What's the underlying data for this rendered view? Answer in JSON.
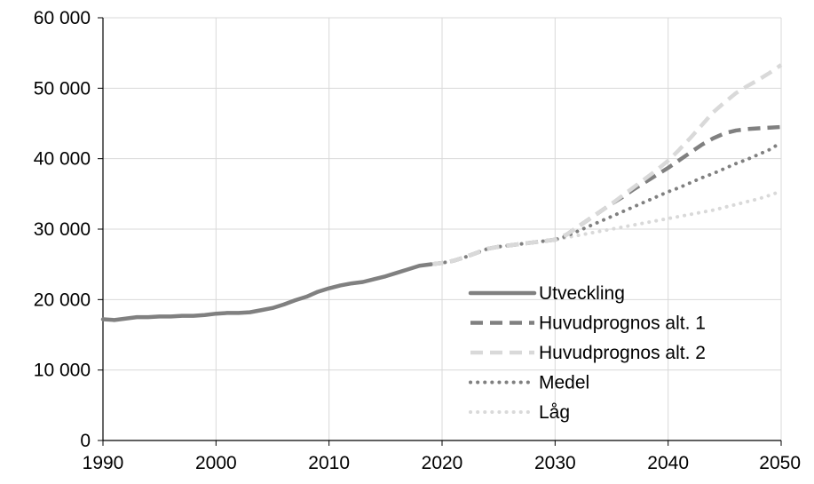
{
  "chart_data": {
    "type": "line",
    "title": "",
    "xlabel": "",
    "ylabel": "",
    "xlim": [
      1990,
      2050
    ],
    "ylim": [
      0,
      60000
    ],
    "grid": true,
    "legend_position": "bottom-right",
    "x_ticks": [
      1990,
      2000,
      2010,
      2020,
      2030,
      2040,
      2050
    ],
    "x_tick_labels": [
      "1990",
      "2000",
      "2010",
      "2020",
      "2030",
      "2040",
      "2050"
    ],
    "y_ticks": [
      0,
      10000,
      20000,
      30000,
      40000,
      50000,
      60000
    ],
    "y_tick_labels": [
      "0",
      "10 000",
      "20 000",
      "30 000",
      "40 000",
      "50 000",
      "60 000"
    ],
    "series": [
      {
        "name": "Utveckling",
        "color": "#808080",
        "style": "solid",
        "points": [
          [
            1990,
            17200
          ],
          [
            1991,
            17100
          ],
          [
            1992,
            17300
          ],
          [
            1993,
            17500
          ],
          [
            1994,
            17500
          ],
          [
            1995,
            17600
          ],
          [
            1996,
            17600
          ],
          [
            1997,
            17700
          ],
          [
            1998,
            17700
          ],
          [
            1999,
            17800
          ],
          [
            2000,
            18000
          ],
          [
            2001,
            18100
          ],
          [
            2002,
            18100
          ],
          [
            2003,
            18200
          ],
          [
            2004,
            18500
          ],
          [
            2005,
            18800
          ],
          [
            2006,
            19300
          ],
          [
            2007,
            19900
          ],
          [
            2008,
            20400
          ],
          [
            2009,
            21100
          ],
          [
            2010,
            21600
          ],
          [
            2011,
            22000
          ],
          [
            2012,
            22300
          ],
          [
            2013,
            22500
          ],
          [
            2014,
            22900
          ],
          [
            2015,
            23300
          ],
          [
            2016,
            23800
          ],
          [
            2017,
            24300
          ],
          [
            2018,
            24800
          ],
          [
            2019,
            25000
          ]
        ]
      },
      {
        "name": "Huvudprognos alt. 1",
        "color": "#808080",
        "style": "dashed",
        "points": [
          [
            2019,
            25000
          ],
          [
            2020,
            25200
          ],
          [
            2021,
            25500
          ],
          [
            2022,
            26000
          ],
          [
            2023,
            26600
          ],
          [
            2024,
            27200
          ],
          [
            2025,
            27500
          ],
          [
            2026,
            27700
          ],
          [
            2027,
            27900
          ],
          [
            2028,
            28100
          ],
          [
            2029,
            28300
          ],
          [
            2030,
            28500
          ],
          [
            2031,
            29200
          ],
          [
            2032,
            30300
          ],
          [
            2033,
            31400
          ],
          [
            2034,
            32500
          ],
          [
            2035,
            33600
          ],
          [
            2036,
            34600
          ],
          [
            2037,
            35700
          ],
          [
            2038,
            36700
          ],
          [
            2039,
            37700
          ],
          [
            2040,
            38700
          ],
          [
            2041,
            39800
          ],
          [
            2042,
            40900
          ],
          [
            2043,
            42000
          ],
          [
            2044,
            42900
          ],
          [
            2045,
            43600
          ],
          [
            2046,
            44000
          ],
          [
            2047,
            44200
          ],
          [
            2048,
            44300
          ],
          [
            2049,
            44400
          ],
          [
            2050,
            44500
          ]
        ]
      },
      {
        "name": "Huvudprognos alt. 2",
        "color": "#d9d9d9",
        "style": "dashed",
        "points": [
          [
            2019,
            25000
          ],
          [
            2020,
            25200
          ],
          [
            2021,
            25500
          ],
          [
            2022,
            26000
          ],
          [
            2023,
            26600
          ],
          [
            2024,
            27200
          ],
          [
            2025,
            27500
          ],
          [
            2026,
            27700
          ],
          [
            2027,
            27900
          ],
          [
            2028,
            28100
          ],
          [
            2029,
            28300
          ],
          [
            2030,
            28500
          ],
          [
            2031,
            29200
          ],
          [
            2032,
            30300
          ],
          [
            2033,
            31400
          ],
          [
            2034,
            32500
          ],
          [
            2035,
            33600
          ],
          [
            2036,
            34800
          ],
          [
            2037,
            36000
          ],
          [
            2038,
            37200
          ],
          [
            2039,
            38400
          ],
          [
            2040,
            39700
          ],
          [
            2041,
            41300
          ],
          [
            2042,
            43000
          ],
          [
            2043,
            44800
          ],
          [
            2044,
            46600
          ],
          [
            2045,
            48000
          ],
          [
            2046,
            49300
          ],
          [
            2047,
            50300
          ],
          [
            2048,
            51200
          ],
          [
            2049,
            52200
          ],
          [
            2050,
            53300
          ]
        ]
      },
      {
        "name": "Medel",
        "color": "#808080",
        "style": "dotted",
        "points": [
          [
            2019,
            25000
          ],
          [
            2020,
            25200
          ],
          [
            2021,
            25500
          ],
          [
            2022,
            26000
          ],
          [
            2023,
            26600
          ],
          [
            2024,
            27200
          ],
          [
            2025,
            27500
          ],
          [
            2026,
            27700
          ],
          [
            2027,
            27900
          ],
          [
            2028,
            28100
          ],
          [
            2029,
            28300
          ],
          [
            2030,
            28500
          ],
          [
            2031,
            29000
          ],
          [
            2032,
            29700
          ],
          [
            2033,
            30400
          ],
          [
            2034,
            31100
          ],
          [
            2035,
            31800
          ],
          [
            2036,
            32500
          ],
          [
            2037,
            33200
          ],
          [
            2038,
            33900
          ],
          [
            2039,
            34600
          ],
          [
            2040,
            35300
          ],
          [
            2041,
            35900
          ],
          [
            2042,
            36600
          ],
          [
            2043,
            37300
          ],
          [
            2044,
            37900
          ],
          [
            2045,
            38600
          ],
          [
            2046,
            39300
          ],
          [
            2047,
            39900
          ],
          [
            2048,
            40600
          ],
          [
            2049,
            41300
          ],
          [
            2050,
            42300
          ]
        ]
      },
      {
        "name": "Låg",
        "color": "#d9d9d9",
        "style": "dotted",
        "points": [
          [
            2019,
            25000
          ],
          [
            2020,
            25200
          ],
          [
            2021,
            25500
          ],
          [
            2022,
            26000
          ],
          [
            2023,
            26600
          ],
          [
            2024,
            27200
          ],
          [
            2025,
            27500
          ],
          [
            2026,
            27700
          ],
          [
            2027,
            27900
          ],
          [
            2028,
            28100
          ],
          [
            2029,
            28300
          ],
          [
            2030,
            28500
          ],
          [
            2031,
            28800
          ],
          [
            2032,
            29100
          ],
          [
            2033,
            29400
          ],
          [
            2034,
            29700
          ],
          [
            2035,
            30000
          ],
          [
            2036,
            30300
          ],
          [
            2037,
            30600
          ],
          [
            2038,
            30900
          ],
          [
            2039,
            31200
          ],
          [
            2040,
            31500
          ],
          [
            2041,
            31800
          ],
          [
            2042,
            32100
          ],
          [
            2043,
            32400
          ],
          [
            2044,
            32700
          ],
          [
            2045,
            33100
          ],
          [
            2046,
            33500
          ],
          [
            2047,
            33900
          ],
          [
            2048,
            34300
          ],
          [
            2049,
            34800
          ],
          [
            2050,
            35400
          ]
        ]
      }
    ]
  }
}
